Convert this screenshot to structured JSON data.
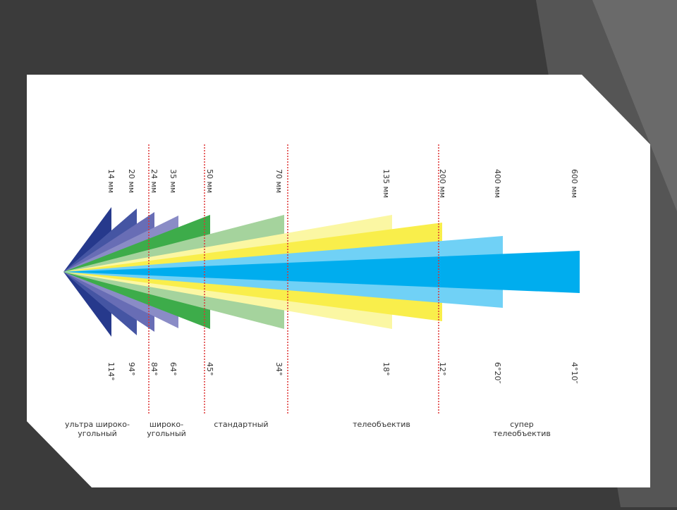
{
  "lenses": [
    {
      "focal": "14 мм",
      "angle": "114°",
      "color": "#26398c"
    },
    {
      "focal": "20 мм",
      "angle": "94°",
      "color": "#4555a3"
    },
    {
      "focal": "24 мм",
      "angle": "84°",
      "color": "#686db5"
    },
    {
      "focal": "35 мм",
      "angle": "64°",
      "color": "#8a8cc6"
    },
    {
      "focal": "50 мм",
      "angle": "45°",
      "color": "#3dac4a"
    },
    {
      "focal": "70 мм",
      "angle": "34°",
      "color": "#a5d39d"
    },
    {
      "focal": "135 мм",
      "angle": "18°",
      "color": "#fbf7a3"
    },
    {
      "focal": "200 мм",
      "angle": "12°",
      "color": "#f9ee4b"
    },
    {
      "focal": "400 мм",
      "angle": "6°20″",
      "color": "#70d1f6"
    },
    {
      "focal": "600 мм",
      "angle": "4°10″",
      "color": "#00adee"
    }
  ],
  "groups": [
    [
      "ультра широко-",
      "угольный"
    ],
    [
      "широко-",
      "угольный"
    ],
    [
      "стандартный"
    ],
    [
      "телеобъектив"
    ],
    [
      "супер",
      "телеобъектив"
    ]
  ]
}
